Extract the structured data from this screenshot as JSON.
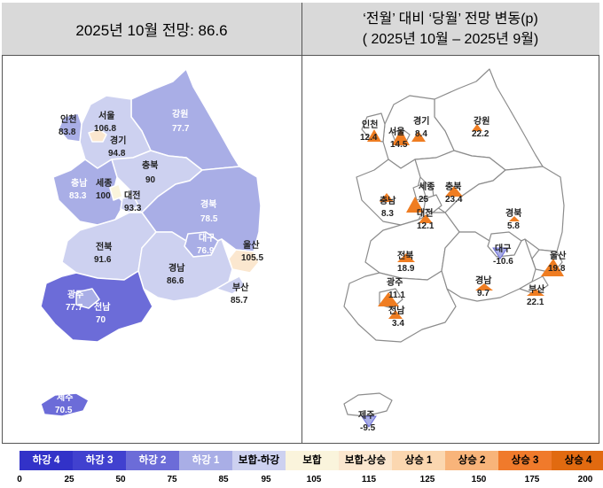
{
  "left_title": "2025년 10월 전망: 86.6",
  "right_title_1": "‘전월’ 대비 ‘당월’ 전망 변동(p)",
  "right_title_2": "( 2025년 10월  –  2025년 9월)",
  "colors": {
    "hg4": "#3232c8",
    "hg3": "#4141cf",
    "hg2": "#6c6cd8",
    "hg1": "#a9aee6",
    "bh_down": "#cdd1f0",
    "bh": "#faf4dc",
    "bh_up": "#fbe7cf",
    "sg1": "#fbd7b0",
    "sg2": "#f8b47a",
    "sg3": "#f07a2b",
    "sg4": "#e16a10",
    "border": "#ffffff",
    "outline": "#8c8c8c",
    "triangle": "#ef7d22",
    "triangle_down": "#a9aee6"
  },
  "left_labels": {
    "incheon": {
      "name": "인천",
      "value": "83.8"
    },
    "seoul": {
      "name": "서울",
      "value": "106.8"
    },
    "gyeonggi": {
      "name": "경기",
      "value": "94.8"
    },
    "gangwon": {
      "name": "강원",
      "value": "77.7"
    },
    "chungbuk": {
      "name": "충북",
      "value": "90"
    },
    "chungnam": {
      "name": "충남",
      "value": "83.3"
    },
    "sejong": {
      "name": "세종",
      "value": "100"
    },
    "daejeon": {
      "name": "대전",
      "value": "93.3"
    },
    "gyeongbuk": {
      "name": "경북",
      "value": "78.5"
    },
    "daegu": {
      "name": "대구",
      "value": "76.9"
    },
    "ulsan": {
      "name": "울산",
      "value": "105.5"
    },
    "jeonbuk": {
      "name": "전북",
      "value": "91.6"
    },
    "gyeongnam": {
      "name": "경남",
      "value": "86.6"
    },
    "busan": {
      "name": "부산",
      "value": "85.7"
    },
    "gwangju": {
      "name": "광주",
      "value": "77.7"
    },
    "jeonnam": {
      "name": "전남",
      "value": "70"
    },
    "jeju": {
      "name": "제주",
      "value": "70.5"
    }
  },
  "right_labels": {
    "incheon": {
      "name": "인천",
      "value": "12.4"
    },
    "seoul": {
      "name": "서울",
      "value": "14.5"
    },
    "gyeonggi": {
      "name": "경기",
      "value": "8.4"
    },
    "gangwon": {
      "name": "강원",
      "value": "22.2"
    },
    "chungnam": {
      "name": "충남",
      "value": "8.3"
    },
    "sejong": {
      "name": "세종",
      "value": "25"
    },
    "chungbuk": {
      "name": "충북",
      "value": "23.4"
    },
    "daejeon": {
      "name": "대전",
      "value": "12.1"
    },
    "gyeongbuk": {
      "name": "경북",
      "value": "5.8"
    },
    "daegu": {
      "name": "대구",
      "value": "-10.6"
    },
    "ulsan": {
      "name": "울산",
      "value": "19.8"
    },
    "jeonbuk": {
      "name": "전북",
      "value": "18.9"
    },
    "gyeongnam": {
      "name": "경남",
      "value": "9.7"
    },
    "busan": {
      "name": "부산",
      "value": "22.1"
    },
    "gwangju": {
      "name": "광주",
      "value": "11.1"
    },
    "jeonnam": {
      "name": "전남",
      "value": "3.4"
    },
    "jeju": {
      "name": "제주",
      "value": "-9.5"
    }
  },
  "legend": [
    {
      "label": "하강 4",
      "color": "#3232c8",
      "text": "#ffffff"
    },
    {
      "label": "하강 3",
      "color": "#4141cf",
      "text": "#ffffff"
    },
    {
      "label": "하강 2",
      "color": "#6c6cd8",
      "text": "#ffffff"
    },
    {
      "label": "하강 1",
      "color": "#a9aee6",
      "text": "#ffffff"
    },
    {
      "label": "보합-하강",
      "color": "#cdd1f0",
      "text": "#000000"
    },
    {
      "label": "보합",
      "color": "#faf4dc",
      "text": "#000000"
    },
    {
      "label": "보합-상승",
      "color": "#fbe7cf",
      "text": "#000000"
    },
    {
      "label": "상승 1",
      "color": "#fbd7b0",
      "text": "#000000"
    },
    {
      "label": "상승 2",
      "color": "#f8b47a",
      "text": "#000000"
    },
    {
      "label": "상승 3",
      "color": "#f07a2b",
      "text": "#000000"
    },
    {
      "label": "상승 4",
      "color": "#e16a10",
      "text": "#000000"
    }
  ],
  "legend_ticks": [
    "0",
    "25",
    "50",
    "75",
    "85",
    "95",
    "105",
    "115",
    "125",
    "150",
    "175",
    "200"
  ]
}
